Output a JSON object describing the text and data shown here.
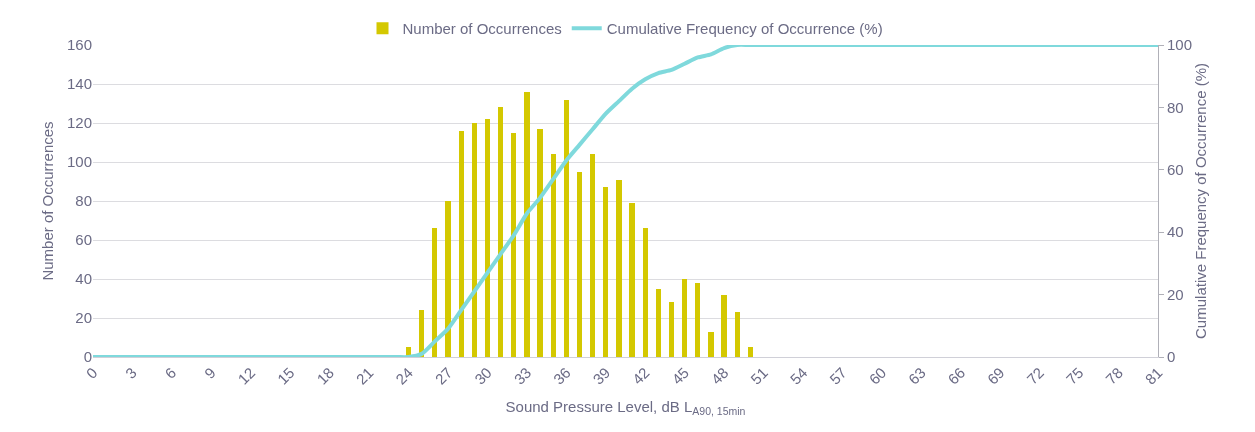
{
  "chart_data": {
    "type": "bar",
    "xlabel": "Sound Pressure Level, dB L$_{A90, 15min}$",
    "ylabel": "Number of Occurrences",
    "y2label": "Cumulative Frequency of Occurrence (%)",
    "xlim": [
      0,
      81
    ],
    "xticks": [
      0,
      3,
      6,
      9,
      12,
      15,
      18,
      21,
      24,
      27,
      30,
      33,
      36,
      39,
      42,
      45,
      48,
      51,
      54,
      57,
      60,
      63,
      66,
      69,
      72,
      75,
      78,
      81
    ],
    "ylim": [
      0,
      160
    ],
    "yticks": [
      0,
      20,
      40,
      60,
      80,
      100,
      120,
      140,
      160
    ],
    "y2lim": [
      0,
      100
    ],
    "y2ticks": [
      0,
      20,
      40,
      60,
      80,
      100
    ],
    "grid": "y",
    "legend": "top",
    "series": [
      {
        "name": "Number of Occurrences",
        "color": "#d4c800",
        "x": [
          24,
          25,
          26,
          27,
          28,
          29,
          30,
          31,
          32,
          33,
          34,
          35,
          36,
          37,
          38,
          39,
          40,
          41,
          42,
          43,
          44,
          45,
          46,
          47,
          48,
          49,
          50
        ],
        "values": [
          5,
          24,
          66,
          80,
          116,
          120,
          122,
          128,
          115,
          136,
          117,
          104,
          132,
          95,
          104,
          87,
          91,
          79,
          66,
          35,
          28,
          40,
          38,
          13,
          32,
          23,
          5
        ]
      },
      {
        "name": "Cumulative Frequency of Occurrence (%)",
        "type": "line",
        "axis": "y2",
        "color": "#7fd9dc",
        "marker": "none",
        "x": [
          0,
          23,
          24,
          25,
          26,
          27,
          28,
          29,
          30,
          31,
          32,
          33,
          34,
          35,
          36,
          37,
          38,
          39,
          40,
          41,
          42,
          43,
          44,
          45,
          46,
          47,
          48,
          49,
          50,
          81
        ],
        "values": [
          0,
          0,
          0,
          1,
          5,
          9,
          15,
          21,
          27,
          33,
          39,
          46,
          51,
          57,
          63,
          68,
          73,
          78,
          82,
          86,
          89,
          91,
          92,
          94,
          96,
          97,
          99,
          100,
          100,
          100
        ]
      }
    ]
  }
}
